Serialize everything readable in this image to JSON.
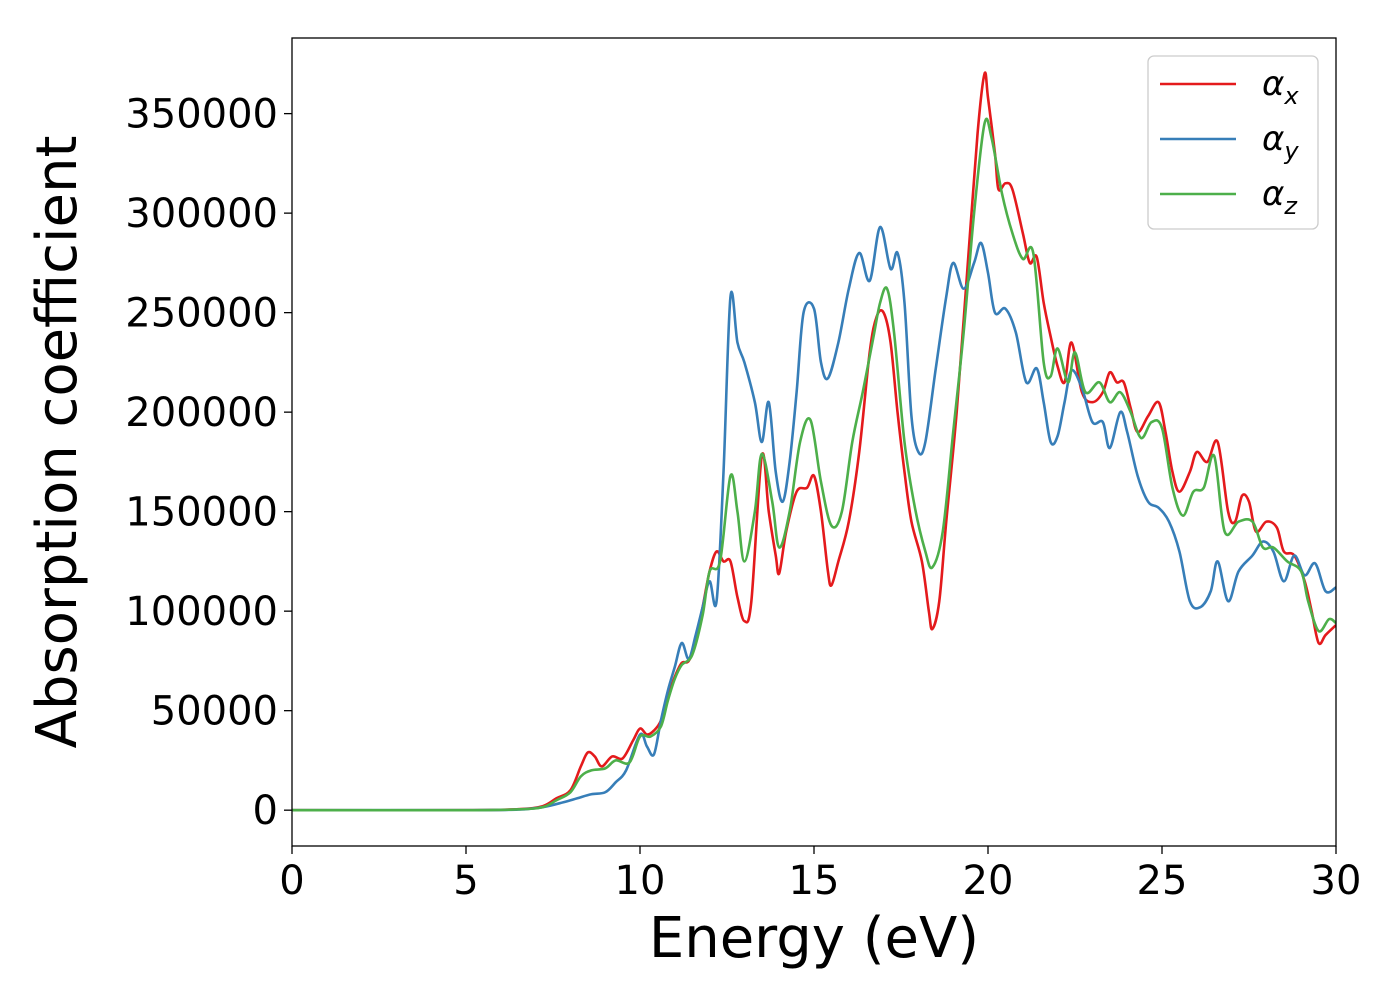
{
  "chart_data": {
    "type": "line",
    "title": "",
    "xlabel": "Energy (eV)",
    "ylabel": "Absorption coefficient",
    "xlim": [
      0,
      30
    ],
    "ylim": [
      -18000,
      388000
    ],
    "xticks": [
      0,
      5,
      10,
      15,
      20,
      25,
      30
    ],
    "xtick_labels": [
      "0",
      "5",
      "10",
      "15",
      "20",
      "25",
      "30"
    ],
    "yticks": [
      0,
      50000,
      100000,
      150000,
      200000,
      250000,
      300000,
      350000
    ],
    "ytick_labels": [
      "0",
      "50000",
      "100000",
      "150000",
      "200000",
      "250000",
      "300000",
      "350000"
    ],
    "grid": false,
    "legend_position": "top-right",
    "colors": {
      "x": "#e41a1c",
      "y": "#377eb8",
      "z": "#4daf4a"
    },
    "legend": [
      {
        "symbol": "α",
        "subscript": "x",
        "color": "#e41a1c"
      },
      {
        "symbol": "α",
        "subscript": "y",
        "color": "#377eb8"
      },
      {
        "symbol": "α",
        "subscript": "z",
        "color": "#4daf4a"
      }
    ],
    "series": [
      {
        "name": "αx",
        "color": "#e41a1c",
        "points": [
          [
            0,
            0
          ],
          [
            5,
            0
          ],
          [
            6.5,
            500
          ],
          [
            7.2,
            2000
          ],
          [
            7.6,
            6000
          ],
          [
            8,
            10000
          ],
          [
            8.3,
            22000
          ],
          [
            8.5,
            29000
          ],
          [
            8.7,
            27000
          ],
          [
            8.9,
            22000
          ],
          [
            9.2,
            27000
          ],
          [
            9.5,
            26000
          ],
          [
            9.8,
            35000
          ],
          [
            10,
            41000
          ],
          [
            10.2,
            38000
          ],
          [
            10.4,
            40000
          ],
          [
            10.6,
            45000
          ],
          [
            10.8,
            57000
          ],
          [
            11,
            67000
          ],
          [
            11.2,
            74000
          ],
          [
            11.4,
            75000
          ],
          [
            11.6,
            85000
          ],
          [
            11.8,
            102000
          ],
          [
            12,
            120000
          ],
          [
            12.2,
            130000
          ],
          [
            12.4,
            125000
          ],
          [
            12.6,
            125000
          ],
          [
            12.8,
            107000
          ],
          [
            13,
            95000
          ],
          [
            13.2,
            105000
          ],
          [
            13.5,
            178000
          ],
          [
            13.7,
            150000
          ],
          [
            13.9,
            128000
          ],
          [
            14,
            119000
          ],
          [
            14.2,
            140000
          ],
          [
            14.5,
            160000
          ],
          [
            14.8,
            162000
          ],
          [
            15,
            168000
          ],
          [
            15.2,
            150000
          ],
          [
            15.4,
            120000
          ],
          [
            15.5,
            113000
          ],
          [
            15.7,
            125000
          ],
          [
            16,
            145000
          ],
          [
            16.3,
            180000
          ],
          [
            16.6,
            230000
          ],
          [
            16.8,
            248000
          ],
          [
            17,
            250000
          ],
          [
            17.2,
            235000
          ],
          [
            17.4,
            200000
          ],
          [
            17.6,
            170000
          ],
          [
            17.8,
            145000
          ],
          [
            18.1,
            125000
          ],
          [
            18.3,
            100000
          ],
          [
            18.4,
            91000
          ],
          [
            18.6,
            105000
          ],
          [
            18.8,
            145000
          ],
          [
            19.1,
            200000
          ],
          [
            19.4,
            270000
          ],
          [
            19.7,
            340000
          ],
          [
            19.9,
            370000
          ],
          [
            20,
            358000
          ],
          [
            20.2,
            330000
          ],
          [
            20.3,
            312000
          ],
          [
            20.5,
            315000
          ],
          [
            20.7,
            312000
          ],
          [
            21,
            290000
          ],
          [
            21.2,
            275000
          ],
          [
            21.4,
            278000
          ],
          [
            21.6,
            255000
          ],
          [
            21.8,
            238000
          ],
          [
            22,
            223000
          ],
          [
            22.2,
            215000
          ],
          [
            22.4,
            235000
          ],
          [
            22.7,
            210000
          ],
          [
            23,
            205000
          ],
          [
            23.3,
            210000
          ],
          [
            23.5,
            220000
          ],
          [
            23.7,
            215000
          ],
          [
            23.9,
            215000
          ],
          [
            24.1,
            202000
          ],
          [
            24.3,
            190000
          ],
          [
            24.6,
            198000
          ],
          [
            24.9,
            205000
          ],
          [
            25.1,
            190000
          ],
          [
            25.3,
            170000
          ],
          [
            25.5,
            160000
          ],
          [
            25.8,
            170000
          ],
          [
            26,
            180000
          ],
          [
            26.3,
            175000
          ],
          [
            26.6,
            185000
          ],
          [
            26.9,
            150000
          ],
          [
            27.1,
            145000
          ],
          [
            27.3,
            158000
          ],
          [
            27.5,
            155000
          ],
          [
            27.7,
            140000
          ],
          [
            28,
            145000
          ],
          [
            28.3,
            142000
          ],
          [
            28.5,
            130000
          ],
          [
            28.8,
            128000
          ],
          [
            29.1,
            115000
          ],
          [
            29.3,
            100000
          ],
          [
            29.5,
            84000
          ],
          [
            29.7,
            88000
          ],
          [
            30,
            93000
          ]
        ]
      },
      {
        "name": "αy",
        "color": "#377eb8",
        "points": [
          [
            0,
            0
          ],
          [
            5,
            0
          ],
          [
            6.5,
            300
          ],
          [
            7.2,
            1500
          ],
          [
            7.8,
            4000
          ],
          [
            8.2,
            6000
          ],
          [
            8.6,
            8000
          ],
          [
            9,
            9000
          ],
          [
            9.3,
            14000
          ],
          [
            9.6,
            20000
          ],
          [
            10,
            38000
          ],
          [
            10.2,
            32000
          ],
          [
            10.4,
            28000
          ],
          [
            10.6,
            45000
          ],
          [
            10.8,
            60000
          ],
          [
            11,
            72000
          ],
          [
            11.2,
            84000
          ],
          [
            11.4,
            76000
          ],
          [
            11.6,
            88000
          ],
          [
            11.8,
            102000
          ],
          [
            12,
            115000
          ],
          [
            12.2,
            105000
          ],
          [
            12.4,
            170000
          ],
          [
            12.6,
            258000
          ],
          [
            12.8,
            235000
          ],
          [
            13,
            225000
          ],
          [
            13.3,
            205000
          ],
          [
            13.5,
            185000
          ],
          [
            13.7,
            205000
          ],
          [
            13.9,
            170000
          ],
          [
            14.1,
            155000
          ],
          [
            14.3,
            175000
          ],
          [
            14.5,
            210000
          ],
          [
            14.7,
            250000
          ],
          [
            15,
            252000
          ],
          [
            15.2,
            225000
          ],
          [
            15.4,
            217000
          ],
          [
            15.7,
            235000
          ],
          [
            16,
            262000
          ],
          [
            16.3,
            280000
          ],
          [
            16.6,
            266000
          ],
          [
            16.9,
            293000
          ],
          [
            17.2,
            272000
          ],
          [
            17.4,
            280000
          ],
          [
            17.6,
            255000
          ],
          [
            17.8,
            198000
          ],
          [
            18,
            180000
          ],
          [
            18.2,
            185000
          ],
          [
            18.5,
            222000
          ],
          [
            18.8,
            258000
          ],
          [
            19,
            275000
          ],
          [
            19.3,
            262000
          ],
          [
            19.6,
            275000
          ],
          [
            19.8,
            285000
          ],
          [
            20,
            270000
          ],
          [
            20.2,
            250000
          ],
          [
            20.5,
            252000
          ],
          [
            20.8,
            240000
          ],
          [
            21.1,
            215000
          ],
          [
            21.4,
            222000
          ],
          [
            21.6,
            205000
          ],
          [
            21.8,
            185000
          ],
          [
            22,
            188000
          ],
          [
            22.2,
            205000
          ],
          [
            22.4,
            221000
          ],
          [
            22.7,
            212000
          ],
          [
            23,
            195000
          ],
          [
            23.3,
            195000
          ],
          [
            23.5,
            182000
          ],
          [
            23.8,
            200000
          ],
          [
            24,
            190000
          ],
          [
            24.3,
            168000
          ],
          [
            24.6,
            155000
          ],
          [
            24.9,
            152000
          ],
          [
            25.2,
            145000
          ],
          [
            25.5,
            130000
          ],
          [
            25.8,
            105000
          ],
          [
            26.1,
            102000
          ],
          [
            26.4,
            110000
          ],
          [
            26.6,
            125000
          ],
          [
            26.9,
            105000
          ],
          [
            27.2,
            120000
          ],
          [
            27.6,
            128000
          ],
          [
            27.9,
            135000
          ],
          [
            28.2,
            130000
          ],
          [
            28.5,
            115000
          ],
          [
            28.8,
            128000
          ],
          [
            29.1,
            118000
          ],
          [
            29.4,
            124000
          ],
          [
            29.7,
            110000
          ],
          [
            30,
            112000
          ]
        ]
      },
      {
        "name": "αz",
        "color": "#4daf4a",
        "points": [
          [
            0,
            0
          ],
          [
            5,
            0
          ],
          [
            6.5,
            400
          ],
          [
            7.2,
            1500
          ],
          [
            7.6,
            5000
          ],
          [
            8,
            9000
          ],
          [
            8.3,
            17000
          ],
          [
            8.6,
            20000
          ],
          [
            9,
            21000
          ],
          [
            9.3,
            25000
          ],
          [
            9.7,
            24000
          ],
          [
            10,
            37000
          ],
          [
            10.3,
            37000
          ],
          [
            10.6,
            42000
          ],
          [
            10.8,
            55000
          ],
          [
            11,
            66000
          ],
          [
            11.2,
            73000
          ],
          [
            11.5,
            78000
          ],
          [
            11.8,
            98000
          ],
          [
            12,
            120000
          ],
          [
            12.3,
            125000
          ],
          [
            12.6,
            168000
          ],
          [
            12.8,
            150000
          ],
          [
            13,
            125000
          ],
          [
            13.3,
            150000
          ],
          [
            13.5,
            179000
          ],
          [
            13.8,
            155000
          ],
          [
            14,
            132000
          ],
          [
            14.3,
            150000
          ],
          [
            14.6,
            185000
          ],
          [
            14.9,
            196000
          ],
          [
            15.2,
            165000
          ],
          [
            15.5,
            143000
          ],
          [
            15.8,
            150000
          ],
          [
            16.1,
            185000
          ],
          [
            16.4,
            210000
          ],
          [
            16.7,
            237000
          ],
          [
            16.9,
            255000
          ],
          [
            17.1,
            262000
          ],
          [
            17.3,
            240000
          ],
          [
            17.6,
            185000
          ],
          [
            17.9,
            152000
          ],
          [
            18.2,
            130000
          ],
          [
            18.4,
            122000
          ],
          [
            18.7,
            140000
          ],
          [
            19,
            190000
          ],
          [
            19.3,
            240000
          ],
          [
            19.6,
            300000
          ],
          [
            19.9,
            345000
          ],
          [
            20.1,
            338000
          ],
          [
            20.4,
            310000
          ],
          [
            20.7,
            290000
          ],
          [
            21,
            277000
          ],
          [
            21.3,
            280000
          ],
          [
            21.6,
            225000
          ],
          [
            21.8,
            218000
          ],
          [
            22,
            232000
          ],
          [
            22.3,
            215000
          ],
          [
            22.5,
            230000
          ],
          [
            22.8,
            210000
          ],
          [
            23.2,
            215000
          ],
          [
            23.5,
            205000
          ],
          [
            23.8,
            210000
          ],
          [
            24.1,
            200000
          ],
          [
            24.4,
            187000
          ],
          [
            24.7,
            195000
          ],
          [
            25,
            192000
          ],
          [
            25.3,
            162000
          ],
          [
            25.6,
            148000
          ],
          [
            25.9,
            160000
          ],
          [
            26.2,
            162000
          ],
          [
            26.5,
            178000
          ],
          [
            26.8,
            140000
          ],
          [
            27.2,
            145000
          ],
          [
            27.6,
            145000
          ],
          [
            27.9,
            132000
          ],
          [
            28.2,
            132000
          ],
          [
            28.6,
            125000
          ],
          [
            29,
            120000
          ],
          [
            29.2,
            105000
          ],
          [
            29.5,
            90000
          ],
          [
            29.8,
            96000
          ],
          [
            30,
            94000
          ]
        ]
      }
    ]
  }
}
